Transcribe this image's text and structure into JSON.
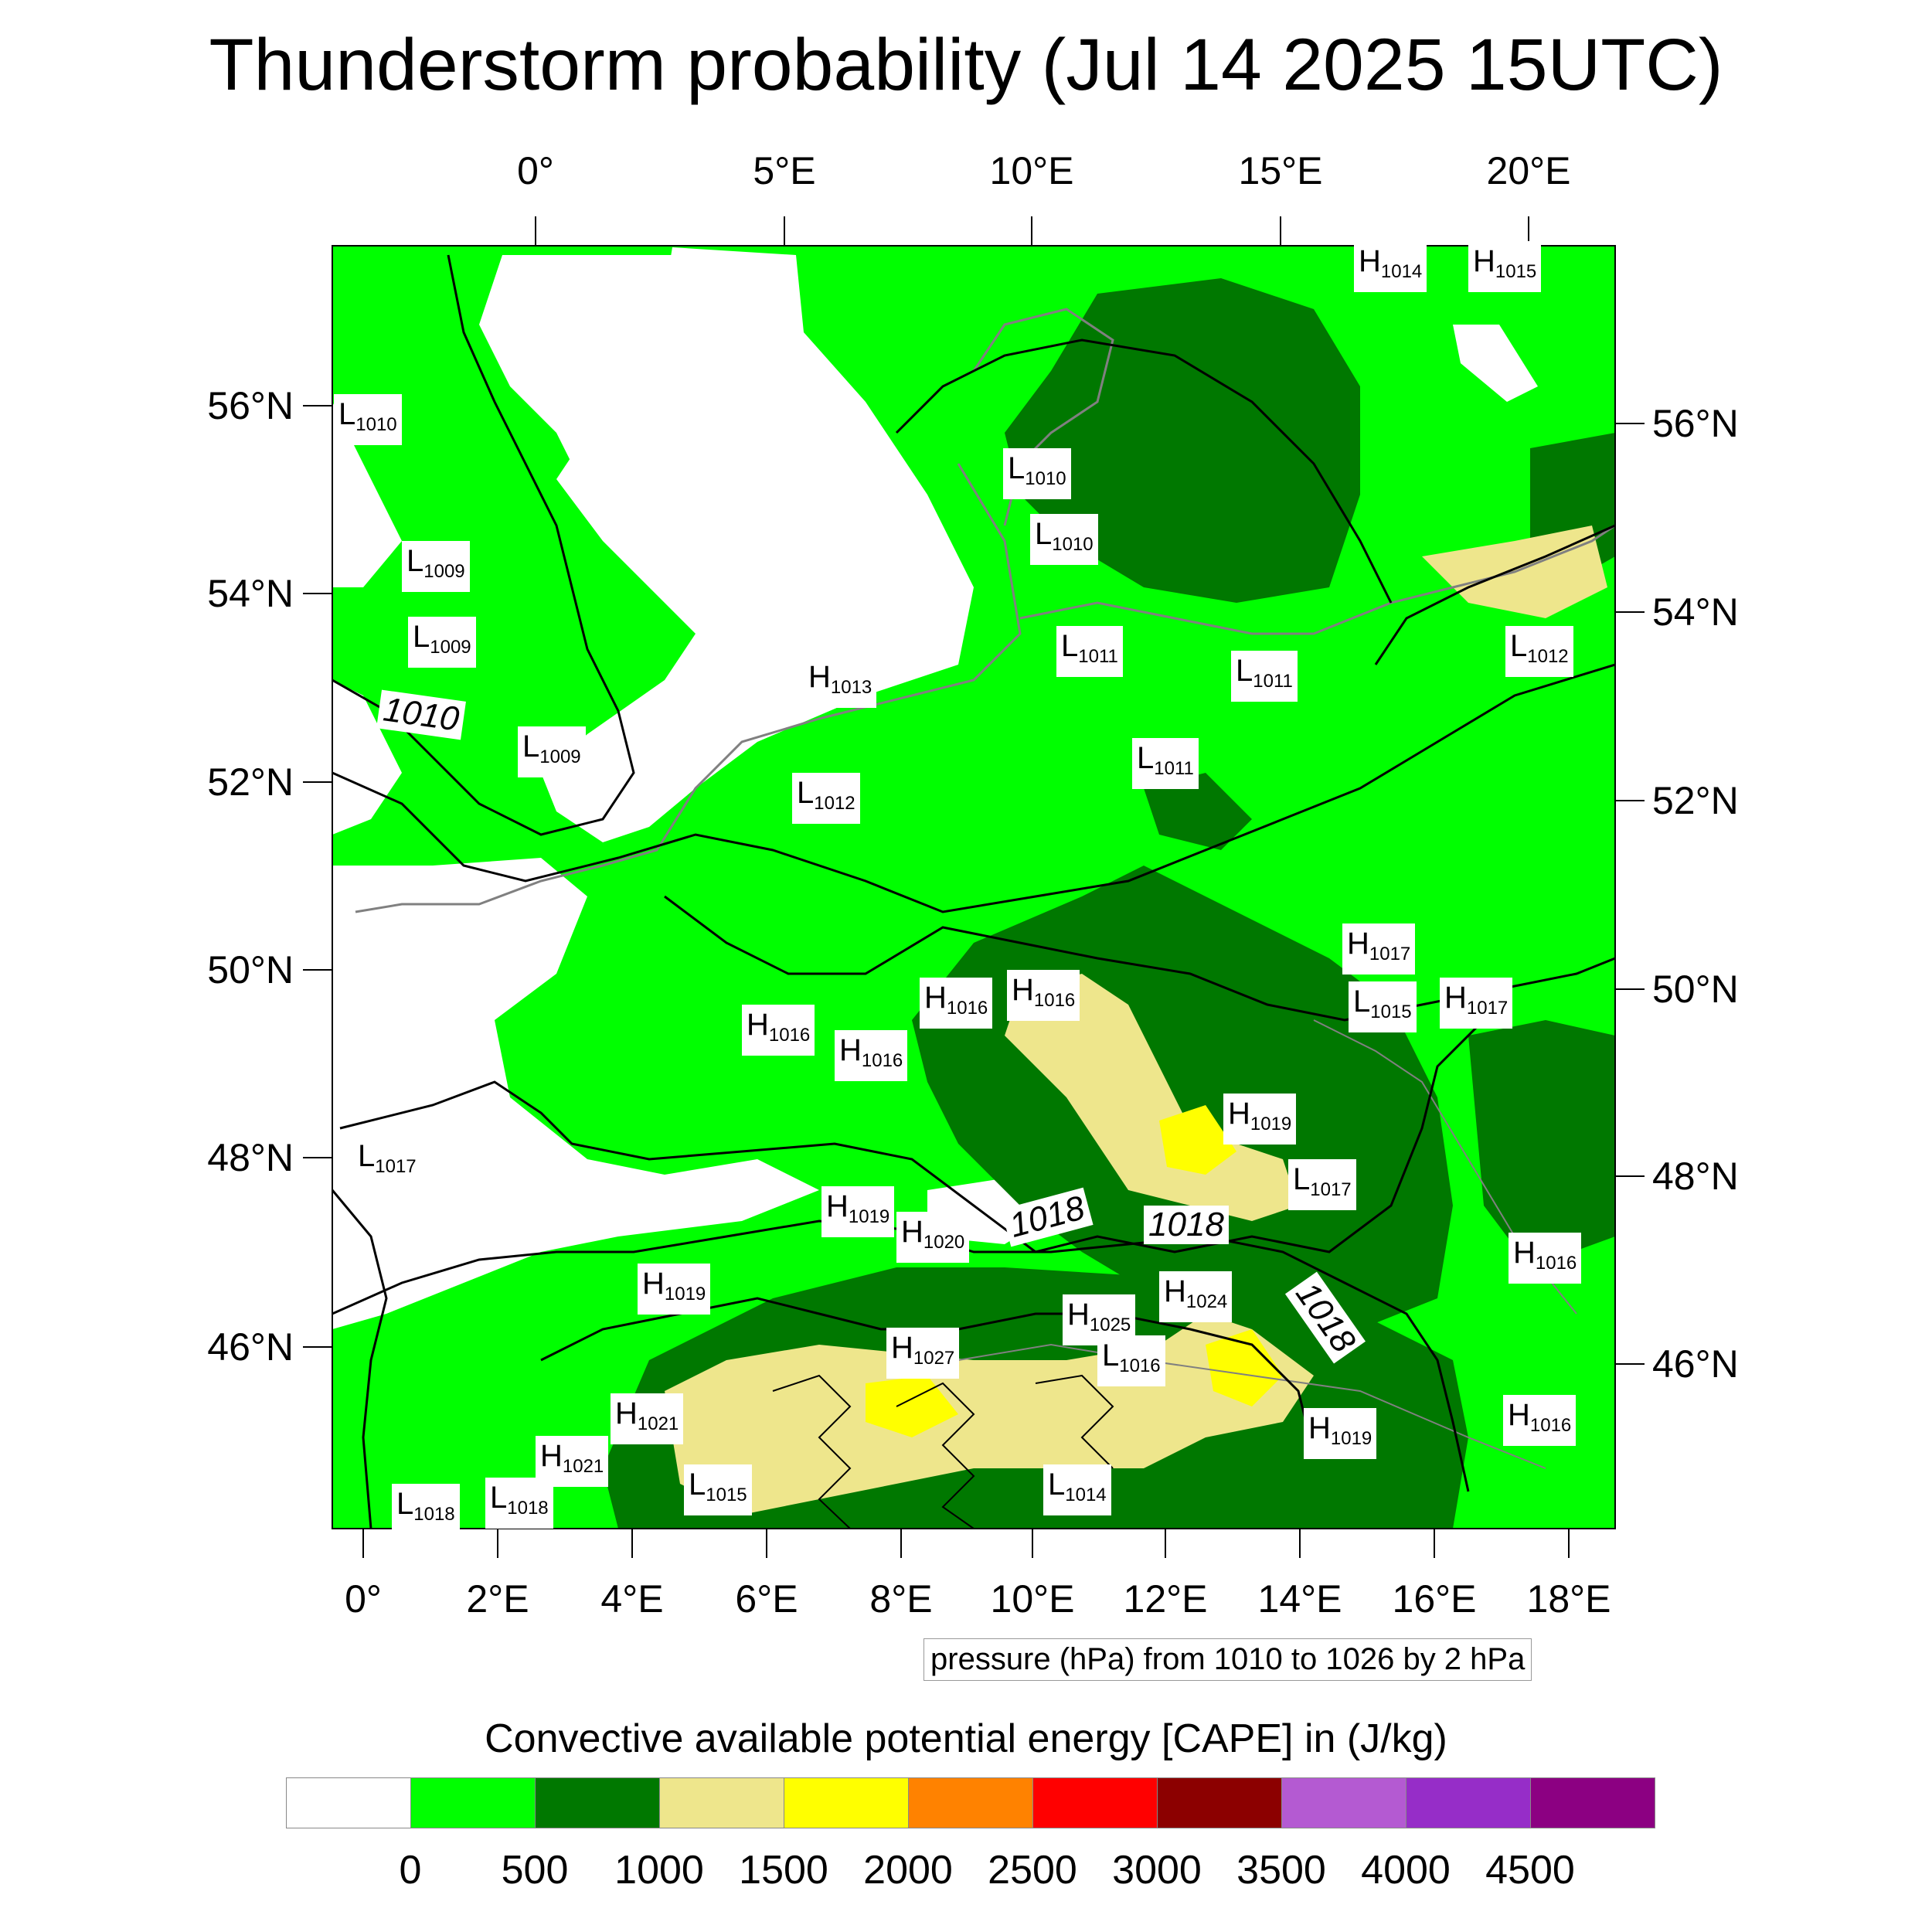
{
  "title": "Thunderstorm probability (Jul 14 2025 15UTC)",
  "axes": {
    "top_ticks": [
      "0°",
      "5°E",
      "10°E",
      "15°E",
      "20°E"
    ],
    "right_ticks": [
      "56°N",
      "54°N",
      "52°N",
      "50°N",
      "48°N",
      "46°N"
    ],
    "left_ticks": [
      "56°N",
      "54°N",
      "52°N",
      "50°N",
      "48°N",
      "46°N"
    ],
    "bottom_ticks": [
      "0°",
      "2°E",
      "4°E",
      "6°E",
      "8°E",
      "10°E",
      "12°E",
      "14°E",
      "16°E",
      "18°E"
    ]
  },
  "pressure_note": "pressure (hPa) from 1010 to 1026 by 2 hPa",
  "contour_labels": [
    "1010",
    "1018",
    "1018",
    "1018"
  ],
  "pressure_centers": [
    {
      "type": "L",
      "value": "1010"
    },
    {
      "type": "L",
      "value": "1009"
    },
    {
      "type": "L",
      "value": "1009"
    },
    {
      "type": "L",
      "value": "1009"
    },
    {
      "type": "H",
      "value": "1013"
    },
    {
      "type": "L",
      "value": "1012"
    },
    {
      "type": "L",
      "value": "1010"
    },
    {
      "type": "L",
      "value": "1010"
    },
    {
      "type": "L",
      "value": "1011"
    },
    {
      "type": "L",
      "value": "1011"
    },
    {
      "type": "L",
      "value": "1011"
    },
    {
      "type": "L",
      "value": "1012"
    },
    {
      "type": "H",
      "value": "1014"
    },
    {
      "type": "H",
      "value": "1015"
    },
    {
      "type": "H",
      "value": "1017"
    },
    {
      "type": "L",
      "value": "1015"
    },
    {
      "type": "H",
      "value": "1017"
    },
    {
      "type": "H",
      "value": "1016"
    },
    {
      "type": "H",
      "value": "1016"
    },
    {
      "type": "H",
      "value": "1016"
    },
    {
      "type": "H",
      "value": "1016"
    },
    {
      "type": "H",
      "value": "1019"
    },
    {
      "type": "L",
      "value": "1017"
    },
    {
      "type": "L",
      "value": "1017"
    },
    {
      "type": "H",
      "value": "1019"
    },
    {
      "type": "H",
      "value": "1020"
    },
    {
      "type": "H",
      "value": "1019"
    },
    {
      "type": "H",
      "value": "1024"
    },
    {
      "type": "H",
      "value": "1025"
    },
    {
      "type": "L",
      "value": "1016"
    },
    {
      "type": "H",
      "value": "1027"
    },
    {
      "type": "H",
      "value": "1016"
    },
    {
      "type": "H",
      "value": "1021"
    },
    {
      "type": "H",
      "value": "1021"
    },
    {
      "type": "H",
      "value": "1019"
    },
    {
      "type": "H",
      "value": "1016"
    },
    {
      "type": "L",
      "value": "1018"
    },
    {
      "type": "L",
      "value": "1018"
    },
    {
      "type": "L",
      "value": "1015"
    },
    {
      "type": "L",
      "value": "1014"
    }
  ],
  "colorbar": {
    "title": "Convective available potential energy [CAPE] in (J/kg)",
    "colors": [
      "#ffffff",
      "#00ff00",
      "#007800",
      "#eee68c",
      "#ffff00",
      "#ff8200",
      "#ff0000",
      "#8c0000",
      "#b45ad2",
      "#962dc8",
      "#8c0082"
    ],
    "ticks": [
      "0",
      "500",
      "1000",
      "1500",
      "2000",
      "2500",
      "3000",
      "3500",
      "4000",
      "4500"
    ]
  }
}
